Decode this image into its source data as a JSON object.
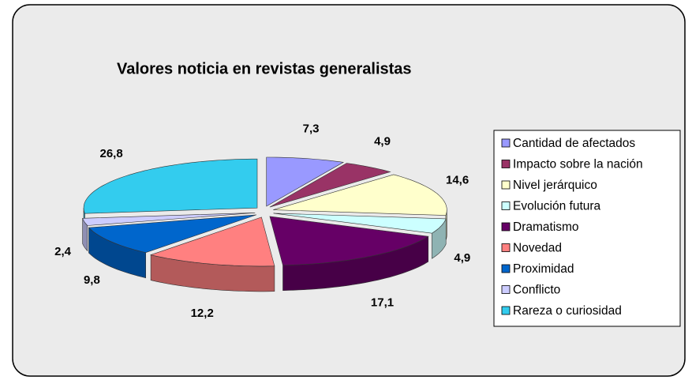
{
  "chart_data": {
    "type": "pie3d",
    "title": "Valores noticia en revistas generalistas",
    "categories": [
      "Cantidad de afectados",
      "Impacto sobre la nación",
      "Nivel jerárquico",
      "Evolución futura",
      "Dramatismo",
      "Novedad",
      "Proximidad",
      "Conflicto",
      "Rareza o curiosidad"
    ],
    "values": [
      7.3,
      4.9,
      14.6,
      4.9,
      17.1,
      12.2,
      9.8,
      2.4,
      26.8
    ],
    "value_labels": [
      "7,3",
      "4,9",
      "14,6",
      "4,9",
      "17,1",
      "12,2",
      "9,8",
      "2,4",
      "26,8"
    ],
    "colors": [
      "#9999ff",
      "#993366",
      "#ffffcc",
      "#ccffff",
      "#660066",
      "#ff8080",
      "#0066cc",
      "#ccccff",
      "#33ccee"
    ],
    "legend": "right"
  }
}
